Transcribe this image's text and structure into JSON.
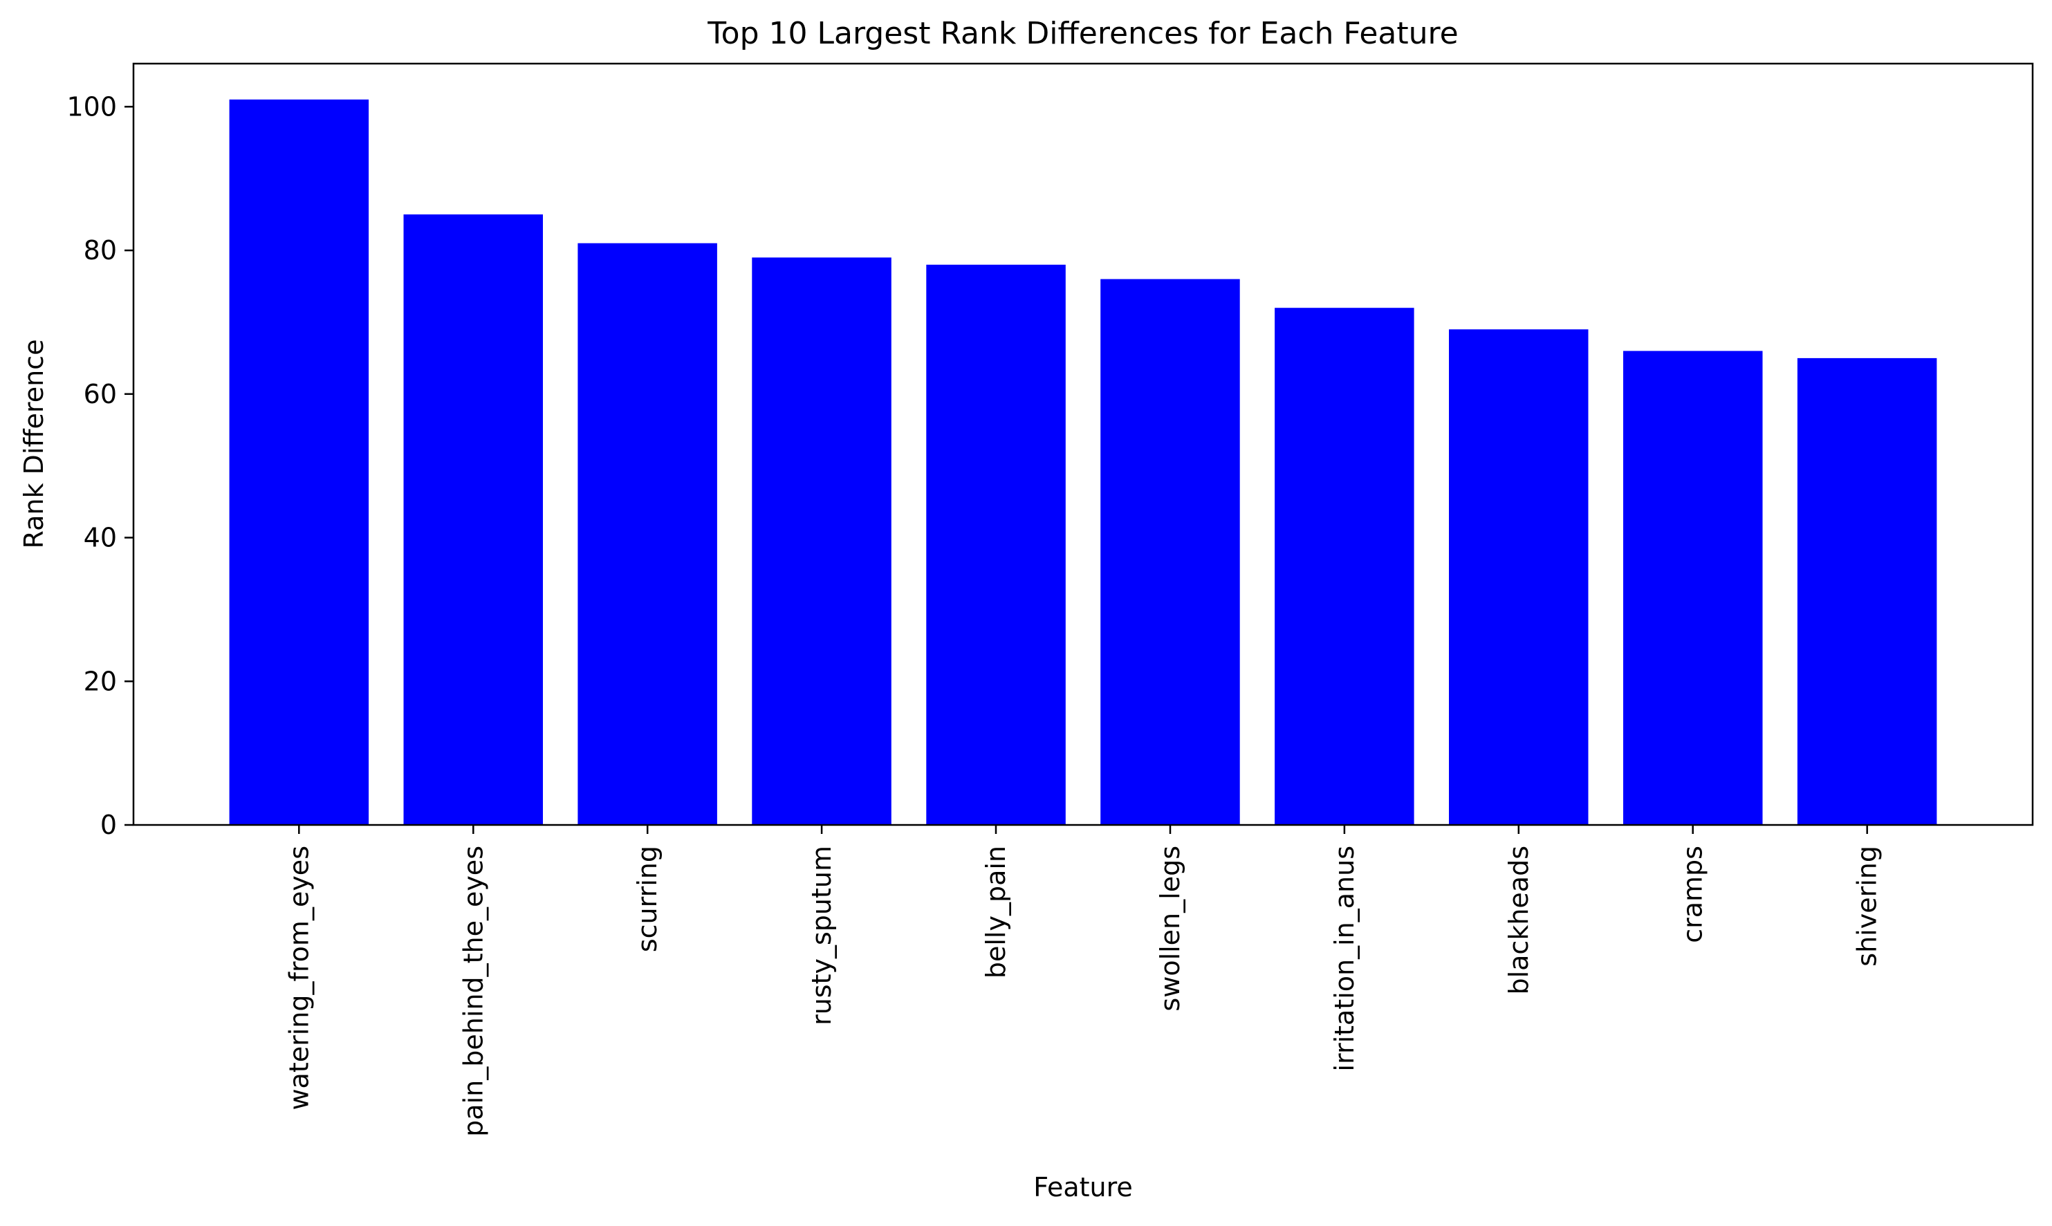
{
  "chart_data": {
    "type": "bar",
    "title": "Top 10 Largest Rank Differences for Each Feature",
    "xlabel": "Feature",
    "ylabel": "Rank Difference",
    "categories": [
      "watering_from_eyes",
      "pain_behind_the_eyes",
      "scurring",
      "rusty_sputum",
      "belly_pain",
      "swollen_legs",
      "irritation_in_anus",
      "blackheads",
      "cramps",
      "shivering"
    ],
    "values": [
      101,
      85,
      81,
      79,
      78,
      76,
      72,
      69,
      66,
      65
    ],
    "ylim": [
      0,
      106
    ],
    "yticks": [
      0,
      20,
      40,
      60,
      80,
      100
    ],
    "bar_color": "#0000ff",
    "grid": false,
    "legend": "none"
  }
}
